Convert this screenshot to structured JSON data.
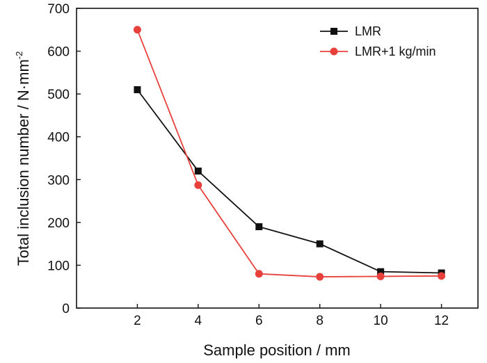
{
  "colors": {
    "axis": "#111111",
    "series_lmr": "#111111",
    "series_lmr_1kg": "#e8413c"
  },
  "chart_data": {
    "type": "line",
    "title": "",
    "xlabel": "Sample position  / mm",
    "ylabel_main": "Total inclusion number / N·mm",
    "ylabel_superscript": "-2",
    "x": [
      2,
      4,
      6,
      8,
      10,
      12
    ],
    "xticks": [
      2,
      4,
      6,
      8,
      10,
      12
    ],
    "xlim": [
      0,
      13.2
    ],
    "yticks": [
      0,
      100,
      200,
      300,
      400,
      500,
      600,
      700
    ],
    "ylim": [
      0,
      700
    ],
    "grid": false,
    "legend_position": "top-right",
    "series": [
      {
        "name": "LMR",
        "marker": "square",
        "color": "#111111",
        "values": [
          510,
          320,
          190,
          150,
          85,
          82
        ]
      },
      {
        "name": "LMR+1 kg/min",
        "marker": "circle",
        "color": "#e8413c",
        "values": [
          650,
          287,
          80,
          73,
          74,
          75
        ]
      }
    ]
  }
}
